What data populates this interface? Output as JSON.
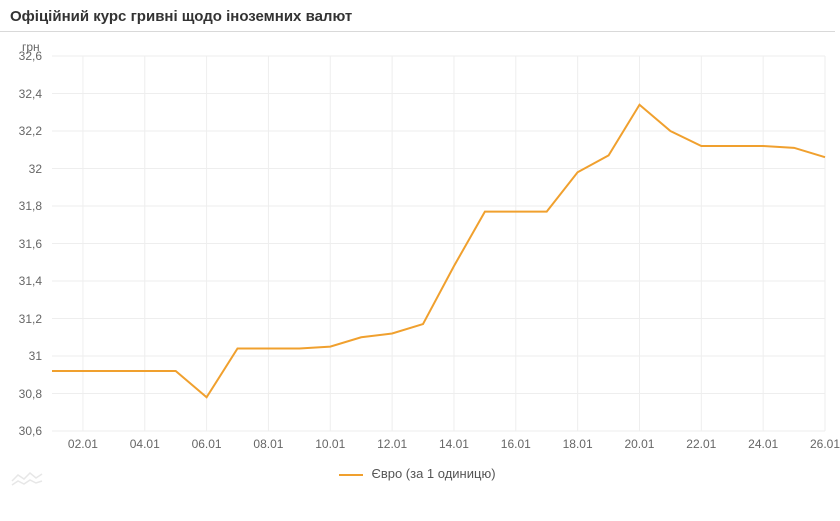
{
  "title": "Офіційний курс гривні щодо іноземних валют",
  "chart": {
    "type": "line",
    "y_unit_label": "грн",
    "ylim": [
      30.6,
      32.6
    ],
    "ytick_step": 0.2,
    "ytick_labels": [
      "32,6",
      "32,4",
      "32,2",
      "32",
      "31,8",
      "31,6",
      "31,4",
      "31,2",
      "31",
      "30,8",
      "30,6"
    ],
    "x_categories_visible": [
      "02.01",
      "04.01",
      "06.01",
      "08.01",
      "10.01",
      "12.01",
      "14.01",
      "16.01",
      "18.01",
      "20.01",
      "22.01",
      "24.01",
      "26.01"
    ],
    "x_values": [
      "01.01",
      "02.01",
      "03.01",
      "04.01",
      "05.01",
      "06.01",
      "07.01",
      "08.01",
      "09.01",
      "10.01",
      "11.01",
      "12.01",
      "13.01",
      "14.01",
      "15.01",
      "16.01",
      "17.01",
      "18.01",
      "19.01",
      "20.01",
      "21.01",
      "22.01",
      "23.01",
      "24.01",
      "25.01",
      "26.01"
    ],
    "series": [
      {
        "name": "Євро (за 1 одиницю)",
        "color": "#f0a02e",
        "values": [
          30.92,
          30.92,
          30.92,
          30.92,
          30.92,
          30.78,
          31.04,
          31.04,
          31.04,
          31.05,
          31.1,
          31.12,
          31.17,
          31.48,
          31.77,
          31.77,
          31.77,
          31.98,
          32.07,
          32.34,
          32.2,
          32.12,
          32.12,
          32.12,
          32.11,
          32.06
        ]
      }
    ],
    "background_color": "#ffffff",
    "grid_color": "#eeeeee",
    "axis_text_color": "#666666",
    "title_color": "#333333",
    "title_fontsize": 15,
    "label_fontsize": 12,
    "line_width": 2
  },
  "legend": {
    "label": "Євро (за 1 одиницю)"
  }
}
